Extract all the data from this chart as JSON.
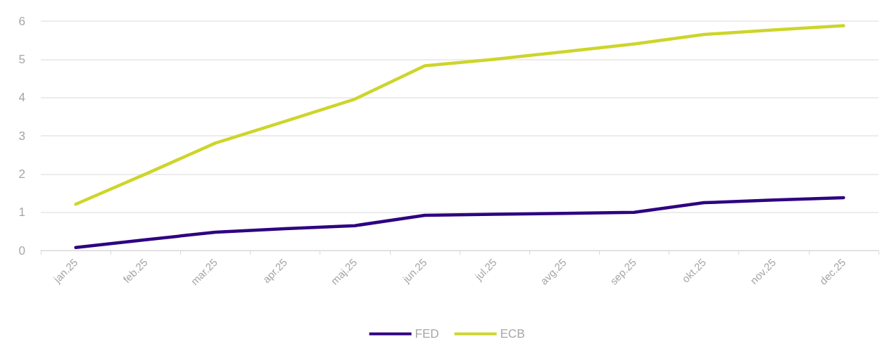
{
  "chart_data": {
    "type": "line",
    "categories": [
      "jan.25",
      "feb.25",
      "mar.25",
      "apr.25",
      "maj.25",
      "jun.25",
      "jul.25",
      "avg.25",
      "sep.25",
      "okt.25",
      "nov.25",
      "dec.25"
    ],
    "series": [
      {
        "name": "FED",
        "color": "#2e0080",
        "values": [
          0.08,
          0.28,
          0.48,
          0.57,
          0.65,
          0.92,
          0.95,
          0.97,
          1.0,
          1.25,
          1.32,
          1.38
        ]
      },
      {
        "name": "ECB",
        "color": "#cdd52a",
        "values": [
          1.21,
          2.0,
          2.81,
          3.38,
          3.96,
          4.83,
          5.0,
          5.2,
          5.4,
          5.65,
          5.77,
          5.88
        ]
      }
    ],
    "ylim": [
      0,
      6
    ],
    "yticks": [
      0,
      1,
      2,
      3,
      4,
      5,
      6
    ],
    "grid": "y",
    "legend": "bottom",
    "marker": "none",
    "line_style": "solid"
  }
}
